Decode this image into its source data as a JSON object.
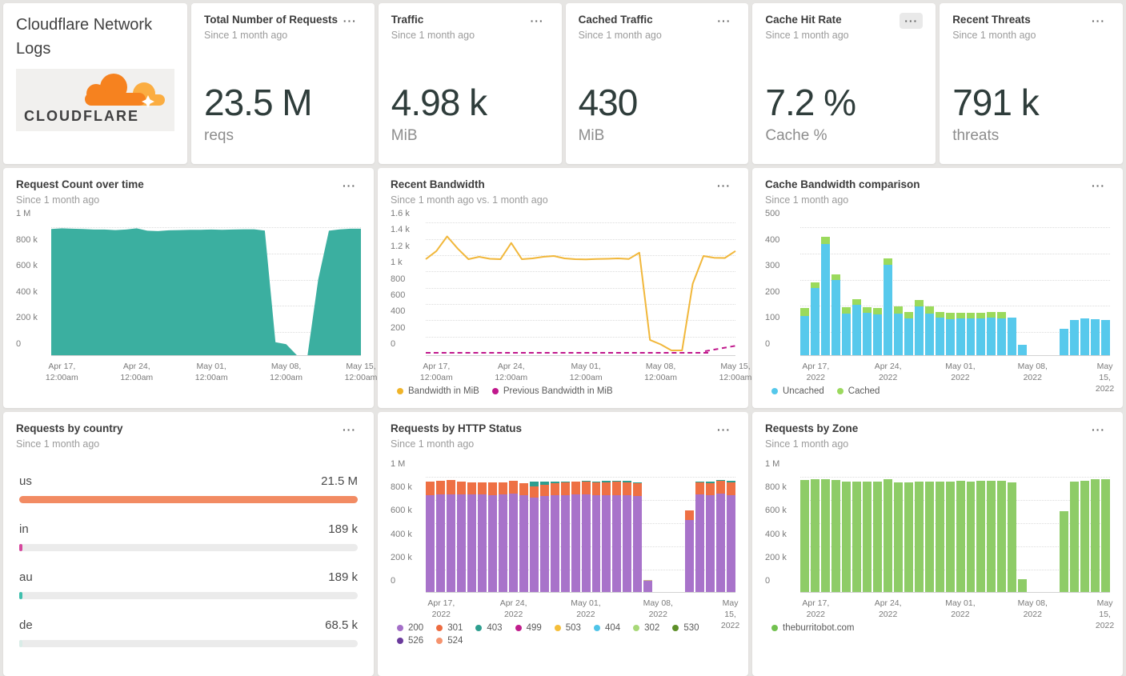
{
  "ui": {
    "menu_label": "···"
  },
  "branding": {
    "title": "Cloudflare Network Logs",
    "logo_wordmark": "CLOUDFLARE",
    "logo_cloud_color": "#f6821f",
    "logo_cloud_light": "#fbad41"
  },
  "stats": [
    {
      "title": "Total Number of Requests",
      "subtitle": "Since 1 month ago",
      "value": "23.5 M",
      "unit": "reqs"
    },
    {
      "title": "Traffic",
      "subtitle": "Since 1 month ago",
      "value": "4.98 k",
      "unit": "MiB"
    },
    {
      "title": "Cached Traffic",
      "subtitle": "Since 1 month ago",
      "value": "430",
      "unit": "MiB"
    },
    {
      "title": "Cache Hit Rate",
      "subtitle": "Since 1 month ago",
      "value": "7.2 %",
      "unit": "Cache %"
    },
    {
      "title": "Recent Threats",
      "subtitle": "Since 1 month ago",
      "value": "791 k",
      "unit": "threats"
    }
  ],
  "panels": {
    "request_count": {
      "title": "Request Count over time",
      "subtitle": "Since 1 month ago",
      "chart": {
        "kind": "area",
        "color": "#3bafa0",
        "ymax": 1000,
        "n": 30,
        "x_mode": "point",
        "yticks": [
          {
            "v": 1000,
            "label": "1 M"
          },
          {
            "v": 800,
            "label": "800 k"
          },
          {
            "v": 600,
            "label": "600 k"
          },
          {
            "v": 400,
            "label": "400 k"
          },
          {
            "v": 200,
            "label": "200 k"
          },
          {
            "v": 0,
            "label": "0"
          }
        ],
        "xticks": [
          {
            "i": 1,
            "label": "Apr 17,\n12:00am"
          },
          {
            "i": 8,
            "label": "Apr 24,\n12:00am"
          },
          {
            "i": 15,
            "label": "May 01,\n12:00am"
          },
          {
            "i": 22,
            "label": "May 08,\n12:00am"
          },
          {
            "i": 29,
            "label": "May 15,\n12:00am"
          }
        ],
        "values": [
          888,
          893,
          890,
          888,
          884,
          884,
          880,
          884,
          893,
          875,
          872,
          878,
          880,
          882,
          882,
          884,
          882,
          884,
          886,
          886,
          876,
          20,
          4,
          0,
          0,
          500,
          875,
          885,
          890,
          890
        ]
      }
    },
    "recent_bandwidth": {
      "title": "Recent Bandwidth",
      "subtitle": "Since 1 month ago vs. 1 month ago",
      "chart": {
        "kind": "line",
        "color": "#f1b73a",
        "ymax": 1600,
        "n": 30,
        "x_mode": "point",
        "prev_dashed": {
          "color": "#c0188c"
        },
        "yticks": [
          {
            "v": 1600,
            "label": "1.6 k"
          },
          {
            "v": 1400,
            "label": "1.4 k"
          },
          {
            "v": 1200,
            "label": "1.2 k"
          },
          {
            "v": 1000,
            "label": "1 k"
          },
          {
            "v": 800,
            "label": "800"
          },
          {
            "v": 600,
            "label": "600"
          },
          {
            "v": 400,
            "label": "400"
          },
          {
            "v": 200,
            "label": "200"
          },
          {
            "v": 0,
            "label": "0"
          }
        ],
        "xticks": [
          {
            "i": 1,
            "label": "Apr 17,\n12:00am"
          },
          {
            "i": 8,
            "label": "Apr 24,\n12:00am"
          },
          {
            "i": 15,
            "label": "May 01,\n12:00am"
          },
          {
            "i": 22,
            "label": "May 08,\n12:00am"
          },
          {
            "i": 29,
            "label": "May 15,\n12:00am"
          }
        ],
        "values": [
          1050,
          1150,
          1330,
          1180,
          1050,
          1080,
          1055,
          1050,
          1250,
          1050,
          1060,
          1080,
          1090,
          1060,
          1050,
          1048,
          1052,
          1055,
          1060,
          1052,
          1130,
          60,
          5,
          0,
          0,
          750,
          1090,
          1068,
          1065,
          1150
        ],
        "legend": [
          {
            "label": "Bandwidth in MiB",
            "color": "#f0b429"
          },
          {
            "label": "Previous Bandwidth in MiB",
            "color": "#c0188c"
          }
        ]
      }
    },
    "cache_bandwidth": {
      "title": "Cache Bandwidth comparison",
      "subtitle": "Since 1 month ago",
      "chart": {
        "kind": "bars",
        "ymax": 500,
        "n": 30,
        "x_mode": "band",
        "yticks": [
          {
            "v": 500,
            "label": "500"
          },
          {
            "v": 400,
            "label": "400"
          },
          {
            "v": 300,
            "label": "300"
          },
          {
            "v": 200,
            "label": "200"
          },
          {
            "v": 100,
            "label": "100"
          },
          {
            "v": 0,
            "label": "0"
          }
        ],
        "xticks": [
          {
            "i": 1,
            "label": "Apr 17,\n2022"
          },
          {
            "i": 8,
            "label": "Apr 24,\n2022"
          },
          {
            "i": 15,
            "label": "May 01,\n2022"
          },
          {
            "i": 22,
            "label": "May 08,\n2022"
          },
          {
            "i": 29,
            "label": "May 15,\n2022"
          }
        ],
        "series": [
          {
            "name": "Uncached",
            "color": "#57c9ec",
            "values": [
              120,
              228,
              395,
              258,
              128,
              163,
              133,
              126,
              315,
              130,
              112,
              158,
              130,
              115,
              108,
              112,
              112,
              112,
              114,
              112,
              113,
              10,
              0,
              0,
              0,
              70,
              105,
              112,
              108,
              105
            ]
          },
          {
            "name": "Cached",
            "color": "#9bda5c",
            "values": [
              30,
              22,
              28,
              20,
              25,
              22,
              20,
              24,
              25,
              27,
              22,
              22,
              25,
              20,
              24,
              20,
              21,
              21,
              22,
              22,
              0,
              0,
              0,
              0,
              0,
              0,
              0,
              0,
              0,
              0
            ]
          }
        ],
        "legend": [
          {
            "label": "Uncached",
            "color": "#55c8eb"
          },
          {
            "label": "Cached",
            "color": "#9bd95e"
          }
        ]
      }
    },
    "by_country": {
      "title": "Requests by country",
      "subtitle": "Since 1 month ago",
      "rows": [
        {
          "label": "us",
          "value": "21.5 M",
          "num": 21500000,
          "color": "#f28b63"
        },
        {
          "label": "in",
          "value": "189 k",
          "num": 189000,
          "color": "#d6479e"
        },
        {
          "label": "au",
          "value": "189 k",
          "num": 189000,
          "color": "#3fbfad"
        },
        {
          "label": "de",
          "value": "68.5 k",
          "num": 68500,
          "color": "#d9ece7"
        }
      ]
    },
    "http_status": {
      "title": "Requests by HTTP Status",
      "subtitle": "Since 1 month ago",
      "chart": {
        "kind": "bars",
        "ymax": 1000,
        "n": 30,
        "x_mode": "band",
        "yticks": [
          {
            "v": 1000,
            "label": "1 M"
          },
          {
            "v": 800,
            "label": "800 k"
          },
          {
            "v": 600,
            "label": "600 k"
          },
          {
            "v": 400,
            "label": "400 k"
          },
          {
            "v": 200,
            "label": "200 k"
          },
          {
            "v": 0,
            "label": "0"
          }
        ],
        "xticks": [
          {
            "i": 1,
            "label": "Apr 17,\n2022"
          },
          {
            "i": 8,
            "label": "Apr 24,\n2022"
          },
          {
            "i": 15,
            "label": "May 01,\n2022"
          },
          {
            "i": 22,
            "label": "May 08,\n2022"
          },
          {
            "i": 29,
            "label": "May 15,\n2022"
          }
        ],
        "series": [
          {
            "name": "200",
            "color": "#a873ca",
            "values": [
              760,
              770,
              770,
              768,
              765,
              765,
              762,
              765,
              775,
              760,
              740,
              755,
              760,
              762,
              765,
              765,
              762,
              760,
              762,
              762,
              755,
              28,
              0,
              0,
              0,
              545,
              765,
              760,
              772,
              758
            ]
          },
          {
            "name": "301",
            "color": "#ee7044",
            "values": [
              115,
              115,
              118,
              112,
              105,
              105,
              108,
              105,
              110,
              105,
              95,
              95,
              105,
              110,
              110,
              112,
              110,
              112,
              112,
              110,
              105,
              0,
              0,
              0,
              0,
              85,
              105,
              105,
              112,
              110
            ]
          },
          {
            "name": "403",
            "color": "#2e9e8f",
            "values": [
              0,
              0,
              0,
              0,
              0,
              0,
              0,
              0,
              0,
              0,
              45,
              25,
              15,
              8,
              5,
              5,
              8,
              10,
              10,
              12,
              12,
              0,
              0,
              0,
              0,
              0,
              10,
              12,
              10,
              18
            ]
          },
          {
            "name": "524",
            "color": "#c9b38a",
            "values": [
              0,
              0,
              0,
              0,
              0,
              0,
              0,
              0,
              0,
              0,
              0,
              0,
              0,
              0,
              0,
              0,
              0,
              0,
              0,
              0,
              0,
              8,
              0,
              0,
              0,
              0,
              0,
              0,
              0,
              0
            ]
          }
        ],
        "legend": [
          {
            "label": "200",
            "color": "#a46fc8"
          },
          {
            "label": "301",
            "color": "#ed6b40"
          },
          {
            "label": "403",
            "color": "#2e9e8f"
          },
          {
            "label": "499",
            "color": "#c01d8c"
          },
          {
            "label": "503",
            "color": "#f5be3a"
          },
          {
            "label": "404",
            "color": "#4fc4e8"
          },
          {
            "label": "302",
            "color": "#a8d878"
          },
          {
            "label": "530",
            "color": "#5d8f28"
          },
          {
            "label": "526",
            "color": "#6a3a9c"
          },
          {
            "label": "524",
            "color": "#f5936e"
          }
        ]
      }
    },
    "by_zone": {
      "title": "Requests by Zone",
      "subtitle": "Since 1 month ago",
      "chart": {
        "kind": "bars",
        "ymax": 1000,
        "n": 30,
        "x_mode": "band",
        "yticks": [
          {
            "v": 1000,
            "label": "1 M"
          },
          {
            "v": 800,
            "label": "800 k"
          },
          {
            "v": 600,
            "label": "600 k"
          },
          {
            "v": 400,
            "label": "400 k"
          },
          {
            "v": 200,
            "label": "200 k"
          },
          {
            "v": 0,
            "label": "0"
          }
        ],
        "xticks": [
          {
            "i": 1,
            "label": "Apr 17,\n2022"
          },
          {
            "i": 8,
            "label": "Apr 24,\n2022"
          },
          {
            "i": 15,
            "label": "May 01,\n2022"
          },
          {
            "i": 22,
            "label": "May 08,\n2022"
          },
          {
            "i": 29,
            "label": "May 15,\n2022"
          }
        ],
        "series": [
          {
            "name": "theburritobot.com",
            "color": "#8ecc67",
            "values": [
              890,
              900,
              900,
              893,
              880,
              878,
              878,
              878,
              895,
              872,
              870,
              878,
              880,
              880,
              880,
              882,
              880,
              882,
              884,
              884,
              872,
              40,
              0,
              0,
              0,
              625,
              880,
              885,
              898,
              895
            ]
          }
        ],
        "legend": [
          {
            "label": "theburritobot.com",
            "color": "#72c14f"
          }
        ]
      }
    }
  }
}
